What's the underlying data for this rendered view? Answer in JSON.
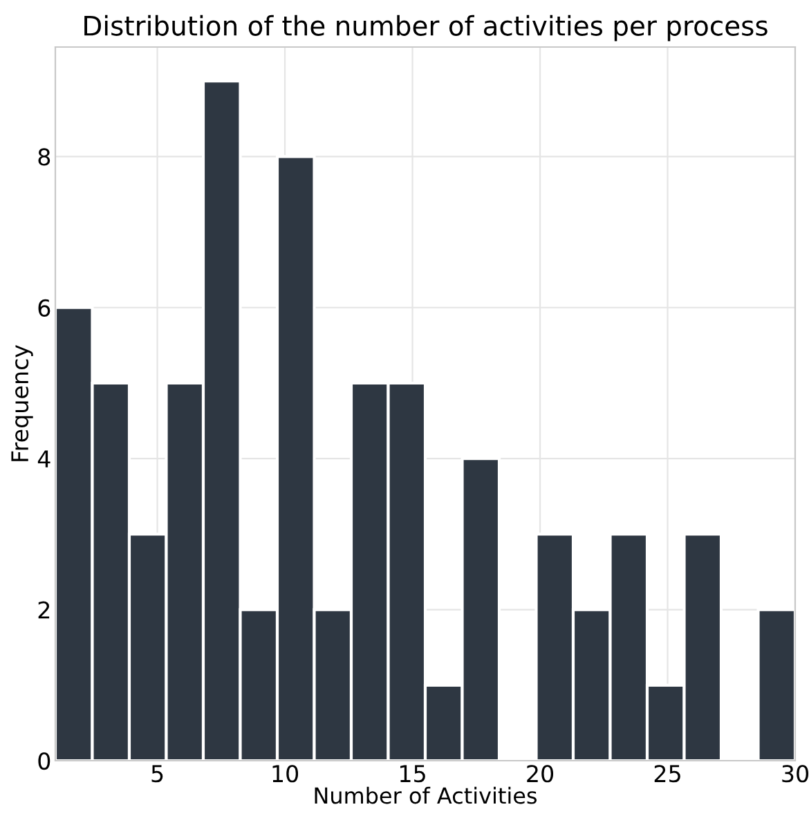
{
  "chart_data": {
    "type": "histogram",
    "title": "Distribution of the number of activities per process",
    "xlabel": "Number of Activities",
    "ylabel": "Frequency",
    "bins": [
      1,
      2.45,
      3.9,
      5.35,
      6.8,
      8.25,
      9.7,
      11.15,
      12.6,
      14.05,
      15.5,
      16.95,
      18.4,
      19.85,
      21.3,
      22.75,
      24.2,
      25.65,
      27.1,
      28.55,
      30
    ],
    "values": [
      6,
      5,
      3,
      5,
      9,
      2,
      8,
      2,
      5,
      5,
      1,
      4,
      0,
      3,
      2,
      3,
      1,
      3,
      0,
      2
    ],
    "color": "#2e3742",
    "xlim": [
      1,
      30
    ],
    "xticks": [
      5,
      10,
      15,
      20,
      25,
      30
    ],
    "ylim": [
      0,
      9.45
    ],
    "yticks": [
      0,
      2,
      4,
      6,
      8
    ],
    "grid": true
  }
}
